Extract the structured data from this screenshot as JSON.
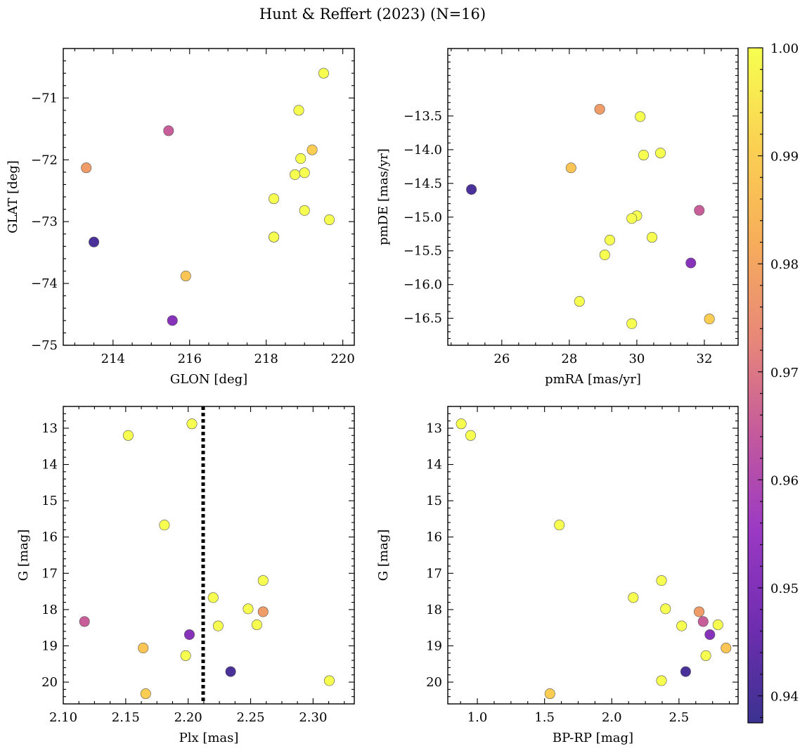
{
  "title": "Hunt & Reffert (2023) (N=16)",
  "colormap": {
    "name": "plasma",
    "label_ticks": [
      "0.94",
      "0.95",
      "0.96",
      "0.97",
      "0.98",
      "0.99",
      "1.00"
    ],
    "tick_values": [
      0.94,
      0.95,
      0.96,
      0.97,
      0.98,
      0.99,
      1.0
    ],
    "range": [
      0.9375,
      1.0
    ],
    "stops": [
      "#3b3290",
      "#6f2db0",
      "#9b39c4",
      "#c45a9c",
      "#e88878",
      "#f7ae5a",
      "#fbd152",
      "#f6ff50"
    ]
  },
  "chart_data": [
    {
      "type": "scatter",
      "xlabel": "GLON [deg]",
      "ylabel": "GLAT [deg]",
      "xlim": [
        212.7,
        220.3
      ],
      "ylim": [
        -75.0,
        -70.2
      ],
      "y_inverted": false,
      "xticks": [
        214,
        216,
        218,
        220
      ],
      "xtick_labels": [
        "214",
        "216",
        "218",
        "220"
      ],
      "yticks": [
        -75,
        -74,
        -73,
        -72,
        -71
      ],
      "ytick_labels": [
        "−75",
        "−74",
        "−73",
        "−72",
        "−71"
      ],
      "x": [
        219.5,
        218.85,
        215.45,
        219.2,
        218.9,
        213.3,
        218.75,
        219.0,
        218.2,
        219.0,
        219.65,
        218.2,
        218.2,
        213.5,
        215.9,
        215.55
      ],
      "y": [
        -70.6,
        -71.2,
        -71.53,
        -71.84,
        -71.98,
        -72.13,
        -72.24,
        -72.21,
        -72.63,
        -72.82,
        -72.97,
        -73.25,
        -73.25,
        -73.33,
        -73.88,
        -74.6
      ],
      "c": [
        1.0,
        1.0,
        0.965,
        0.99,
        1.0,
        0.978,
        1.0,
        1.0,
        1.0,
        1.0,
        1.0,
        1.0,
        1.0,
        0.94,
        0.988,
        0.951
      ]
    },
    {
      "type": "scatter",
      "xlabel": "pmRA [mas/yr]",
      "ylabel": "pmDE [mas/yr]",
      "xlim": [
        24.4,
        33.0
      ],
      "ylim": [
        -16.9,
        -12.5
      ],
      "y_inverted": false,
      "xticks": [
        26,
        28,
        30,
        32
      ],
      "xtick_labels": [
        "26",
        "28",
        "30",
        "32"
      ],
      "yticks": [
        -16.5,
        -16.0,
        -15.5,
        -15.0,
        -14.5,
        -14.0,
        -13.5
      ],
      "ytick_labels": [
        "−16.5",
        "−16.0",
        "−15.5",
        "−15.0",
        "−14.5",
        "−14.0",
        "−13.5"
      ],
      "x": [
        28.9,
        30.1,
        30.7,
        30.2,
        28.05,
        25.1,
        31.85,
        30.0,
        29.85,
        30.45,
        29.2,
        29.05,
        31.6,
        28.3,
        29.85,
        32.15
      ],
      "y": [
        -13.4,
        -13.51,
        -14.05,
        -14.08,
        -14.27,
        -14.59,
        -14.9,
        -14.98,
        -15.02,
        -15.3,
        -15.34,
        -15.56,
        -15.68,
        -16.25,
        -16.58,
        -16.51
      ],
      "c": [
        0.978,
        1.0,
        1.0,
        1.0,
        0.988,
        0.94,
        0.965,
        1.0,
        1.0,
        1.0,
        1.0,
        1.0,
        0.951,
        1.0,
        1.0,
        0.99
      ]
    },
    {
      "type": "scatter",
      "xlabel": "Plx [mas]",
      "ylabel": "G [mag]",
      "xlim": [
        2.1,
        2.333
      ],
      "ylim": [
        20.6,
        12.4
      ],
      "y_inverted": true,
      "xticks": [
        2.1,
        2.15,
        2.2,
        2.25,
        2.3
      ],
      "xtick_labels": [
        "2.10",
        "2.15",
        "2.20",
        "2.25",
        "2.30"
      ],
      "yticks": [
        13,
        14,
        15,
        16,
        17,
        18,
        19,
        20
      ],
      "ytick_labels": [
        "13",
        "14",
        "15",
        "16",
        "17",
        "18",
        "19",
        "20"
      ],
      "vline": 2.212,
      "x": [
        2.203,
        2.152,
        2.181,
        2.26,
        2.22,
        2.248,
        2.26,
        2.117,
        2.255,
        2.224,
        2.201,
        2.164,
        2.198,
        2.234,
        2.313,
        2.166
      ],
      "y": [
        12.88,
        13.2,
        15.67,
        17.2,
        17.67,
        17.98,
        18.06,
        18.33,
        18.42,
        18.45,
        18.69,
        19.06,
        19.27,
        19.71,
        19.96,
        20.32
      ],
      "c": [
        1.0,
        1.0,
        1.0,
        1.0,
        1.0,
        1.0,
        0.978,
        0.965,
        1.0,
        1.0,
        0.951,
        0.988,
        1.0,
        0.94,
        1.0,
        0.99
      ]
    },
    {
      "type": "scatter",
      "xlabel": "BP-RP [mag]",
      "ylabel": "G [mag]",
      "xlim": [
        0.78,
        2.94
      ],
      "ylim": [
        20.6,
        12.4
      ],
      "y_inverted": true,
      "xticks": [
        1.0,
        1.5,
        2.0,
        2.5
      ],
      "xtick_labels": [
        "1.0",
        "1.5",
        "2.0",
        "2.5"
      ],
      "yticks": [
        13,
        14,
        15,
        16,
        17,
        18,
        19,
        20
      ],
      "ytick_labels": [
        "13",
        "14",
        "15",
        "16",
        "17",
        "18",
        "19",
        "20"
      ],
      "x": [
        0.88,
        0.95,
        1.61,
        2.37,
        2.16,
        2.4,
        2.65,
        2.68,
        2.79,
        2.52,
        2.73,
        2.85,
        2.7,
        2.55,
        2.37,
        1.54
      ],
      "y": [
        12.88,
        13.2,
        15.67,
        17.2,
        17.67,
        17.98,
        18.06,
        18.33,
        18.42,
        18.45,
        18.69,
        19.06,
        19.27,
        19.71,
        19.96,
        20.32
      ],
      "c": [
        1.0,
        1.0,
        1.0,
        1.0,
        1.0,
        1.0,
        0.978,
        0.965,
        1.0,
        1.0,
        0.951,
        0.988,
        1.0,
        0.94,
        1.0,
        0.99
      ]
    }
  ]
}
